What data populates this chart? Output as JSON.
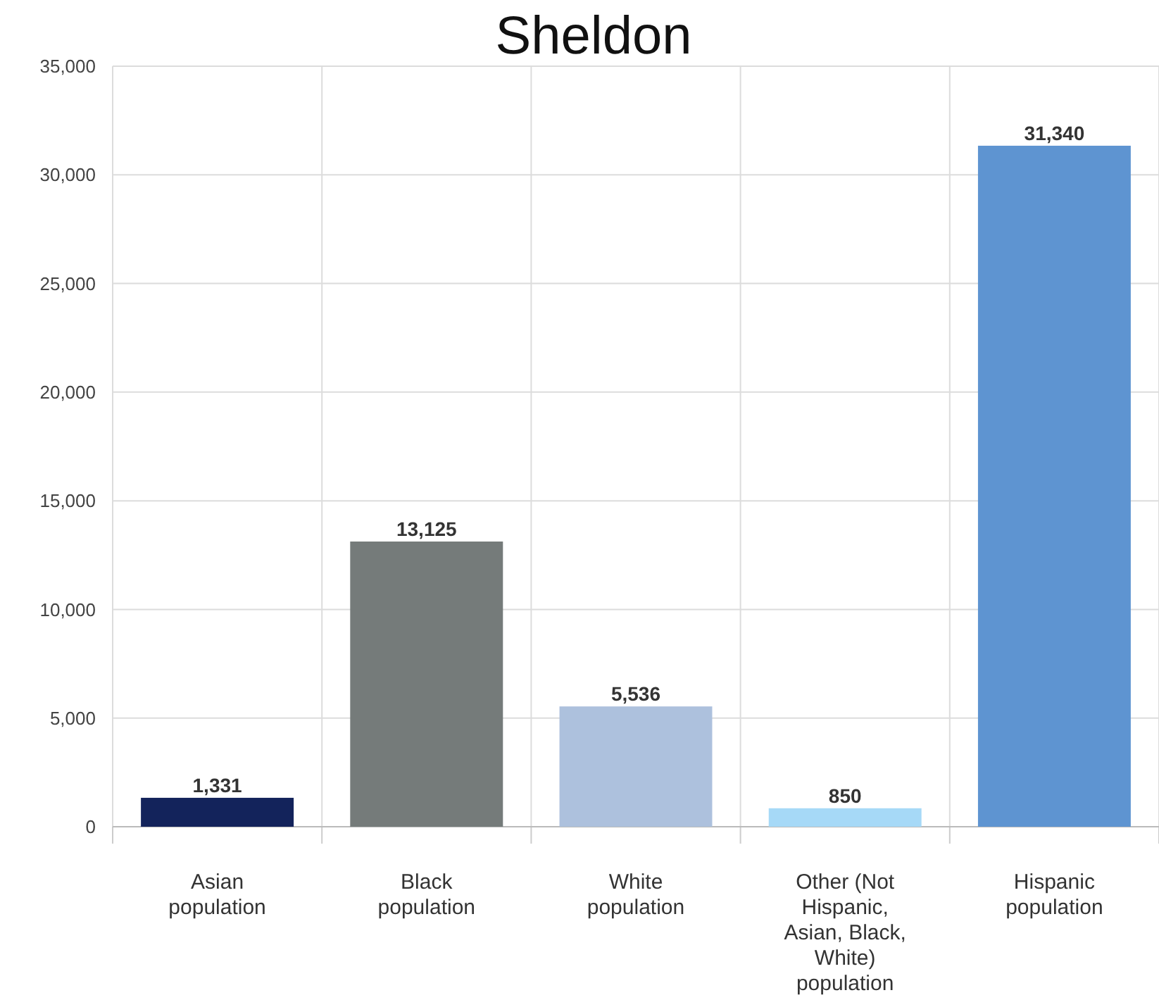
{
  "chart_data": {
    "type": "bar",
    "title": "Sheldon",
    "categories": [
      "Asian population",
      "Black population",
      "White population",
      "Other (Not Hispanic, Asian, Black, White) population",
      "Hispanic population"
    ],
    "values": [
      1331,
      13125,
      5536,
      850,
      31340
    ],
    "colors": [
      "#13235b",
      "#757b7a",
      "#adc1dd",
      "#a6d9f7",
      "#5e94d1"
    ],
    "ylim": [
      0,
      35000
    ],
    "yticks": [
      {
        "value": 0,
        "label": "0"
      },
      {
        "value": 5000,
        "label": "5,000"
      },
      {
        "value": 10000,
        "label": "10,000"
      },
      {
        "value": 15000,
        "label": "15,000"
      },
      {
        "value": 20000,
        "label": "20,000"
      },
      {
        "value": 25000,
        "label": "25,000"
      },
      {
        "value": 30000,
        "label": "30,000"
      },
      {
        "value": 35000,
        "label": "35,000"
      }
    ],
    "grid": true,
    "value_labels": [
      "1,331",
      "13,125",
      "5,536",
      "850",
      "31,340"
    ]
  }
}
